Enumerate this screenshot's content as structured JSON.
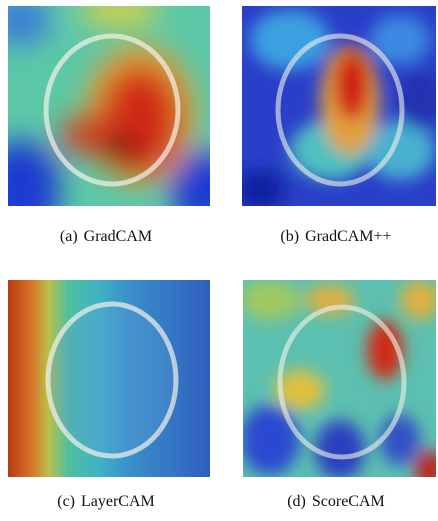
{
  "figure": {
    "panels": [
      {
        "label": "(a)",
        "caption": "GradCAM"
      },
      {
        "label": "(b)",
        "caption": "GradCAM++"
      },
      {
        "label": "(c)",
        "caption": "LayerCAM"
      },
      {
        "label": "(d)",
        "caption": "ScoreCAM"
      }
    ]
  }
}
